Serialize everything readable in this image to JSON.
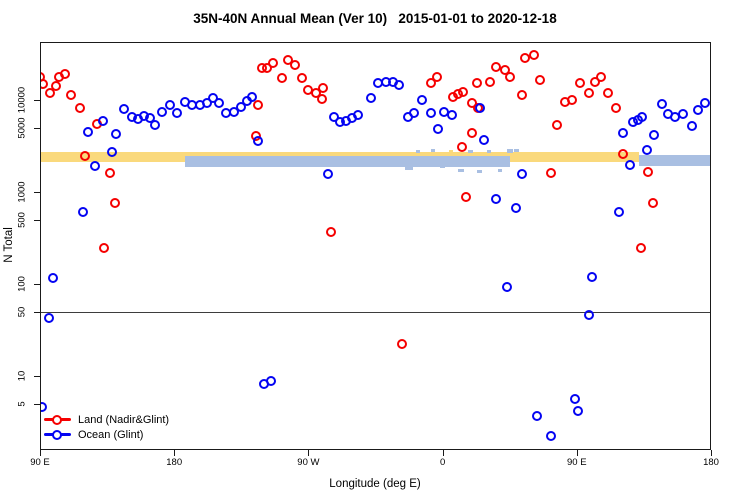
{
  "chart_data": {
    "type": "scatter",
    "title": "35N-40N Annual Mean (Ver 10)   2015-01-01 to 2020-12-18",
    "xlabel": "Longitude (deg E)",
    "ylabel": "N Total",
    "colors": {
      "land": "#f50000",
      "ocean": "#0404f2",
      "band_land": "#fad97c",
      "band_ocean": "#a9bfe2",
      "refline": "#3d3d3d"
    },
    "x_axis": {
      "note": "longitude axis starting at 90E wrapping eastward, deg = offset from 90E",
      "span_deg": 450,
      "ticks": [
        {
          "label": "90 E",
          "deg": 0
        },
        {
          "label": "180",
          "deg": 90
        },
        {
          "label": "90 W",
          "deg": 180
        },
        {
          "label": "0",
          "deg": 270
        },
        {
          "label": "90 E",
          "deg": 360
        },
        {
          "label": "180",
          "deg": 450
        }
      ]
    },
    "y_axis": {
      "scale": "log10",
      "ticks": [
        {
          "label": "5",
          "value": 5
        },
        {
          "label": "10",
          "value": 10
        },
        {
          "label": "50",
          "value": 50
        },
        {
          "label": "100",
          "value": 100
        },
        {
          "label": "500",
          "value": 500
        },
        {
          "label": "1000",
          "value": 1000
        },
        {
          "label": "5000",
          "value": 5000
        },
        {
          "label": "10000",
          "value": 10000
        }
      ],
      "range": [
        1.8,
        45000
      ]
    },
    "reference_line": {
      "n": 50
    },
    "bands": [
      {
        "series": "land",
        "color_key": "band_land",
        "deg_from": 0,
        "deg_to": 402,
        "n_low": 2100,
        "n_high": 2750
      },
      {
        "series": "ocean",
        "color_key": "band_ocean",
        "deg_from": 97,
        "deg_to": 315,
        "n_low": 1850,
        "n_high": 2460
      },
      {
        "series": "ocean",
        "color_key": "band_ocean",
        "deg_from": 402,
        "deg_to": 450,
        "n_low": 1900,
        "n_high": 2520
      }
    ],
    "band_speckles": [
      {
        "deg": 245,
        "n": 1850,
        "w": 8,
        "h": 3,
        "color_key": "band_ocean"
      },
      {
        "deg": 252,
        "n": 2880,
        "w": 4,
        "h": 3,
        "color_key": "band_ocean"
      },
      {
        "deg": 262,
        "n": 2900,
        "w": 4,
        "h": 3,
        "color_key": "band_ocean"
      },
      {
        "deg": 268,
        "n": 1950,
        "w": 5,
        "h": 3,
        "color_key": "band_ocean"
      },
      {
        "deg": 274,
        "n": 2850,
        "w": 4,
        "h": 3,
        "color_key": "band_land"
      },
      {
        "deg": 280,
        "n": 1800,
        "w": 6,
        "h": 3,
        "color_key": "band_ocean"
      },
      {
        "deg": 287,
        "n": 2880,
        "w": 5,
        "h": 3,
        "color_key": "band_ocean"
      },
      {
        "deg": 293,
        "n": 1750,
        "w": 5,
        "h": 3,
        "color_key": "band_ocean"
      },
      {
        "deg": 300,
        "n": 2850,
        "w": 4,
        "h": 3,
        "color_key": "band_ocean"
      },
      {
        "deg": 307,
        "n": 1800,
        "w": 4,
        "h": 3,
        "color_key": "band_ocean"
      },
      {
        "deg": 313,
        "n": 2950,
        "w": 6,
        "h": 4,
        "color_key": "band_ocean"
      },
      {
        "deg": 318,
        "n": 2900,
        "w": 5,
        "h": 3,
        "color_key": "band_ocean"
      }
    ],
    "series": [
      {
        "name": "Land (Nadir&Glint)",
        "color_key": "land",
        "points": [
          [
            0,
            17800
          ],
          [
            2,
            14900
          ],
          [
            7,
            11900
          ],
          [
            11,
            14200
          ],
          [
            13,
            17800
          ],
          [
            17,
            19200
          ],
          [
            21,
            11300
          ],
          [
            27,
            8200
          ],
          [
            30,
            2460
          ],
          [
            38,
            5500
          ],
          [
            47,
            1610
          ],
          [
            50,
            760
          ],
          [
            43,
            245
          ],
          [
            145,
            4060
          ],
          [
            146,
            8800
          ],
          [
            149,
            22300
          ],
          [
            152,
            22300
          ],
          [
            156,
            25200
          ],
          [
            162,
            17300
          ],
          [
            166,
            27200
          ],
          [
            171,
            24000
          ],
          [
            176,
            17300
          ],
          [
            180,
            12900
          ],
          [
            185,
            11900
          ],
          [
            189,
            10300
          ],
          [
            190,
            13500
          ],
          [
            195,
            367
          ],
          [
            243,
            22
          ],
          [
            262,
            15300
          ],
          [
            266,
            17800
          ],
          [
            277,
            10800
          ],
          [
            280,
            11600
          ],
          [
            284,
            12200
          ],
          [
            283,
            3100
          ],
          [
            286,
            880
          ],
          [
            290,
            9300
          ],
          [
            290,
            4400
          ],
          [
            294,
            8200
          ],
          [
            293,
            15300
          ],
          [
            302,
            15700
          ],
          [
            306,
            22900
          ],
          [
            312,
            21200
          ],
          [
            315,
            17800
          ],
          [
            323,
            11300
          ],
          [
            325,
            28600
          ],
          [
            331,
            30800
          ],
          [
            335,
            16500
          ],
          [
            343,
            1610
          ],
          [
            347,
            5340
          ],
          [
            352,
            9500
          ],
          [
            357,
            10000
          ],
          [
            362,
            15300
          ],
          [
            368,
            11900
          ],
          [
            372,
            15700
          ],
          [
            376,
            17800
          ],
          [
            381,
            11900
          ],
          [
            386,
            8200
          ],
          [
            391,
            2560
          ],
          [
            403,
            245
          ],
          [
            408,
            1650
          ],
          [
            411,
            760
          ]
        ]
      },
      {
        "name": "Ocean (Glint)",
        "color_key": "ocean",
        "points": [
          [
            1,
            4.6
          ],
          [
            6,
            43
          ],
          [
            9,
            116
          ],
          [
            29,
            610
          ],
          [
            32,
            4490
          ],
          [
            37,
            1920
          ],
          [
            42,
            5900
          ],
          [
            48,
            2720
          ],
          [
            51,
            4270
          ],
          [
            56,
            8000
          ],
          [
            62,
            6530
          ],
          [
            66,
            6210
          ],
          [
            70,
            6700
          ],
          [
            74,
            6360
          ],
          [
            77,
            5340
          ],
          [
            82,
            7400
          ],
          [
            87,
            8830
          ],
          [
            92,
            7230
          ],
          [
            97,
            9510
          ],
          [
            102,
            8830
          ],
          [
            107,
            8830
          ],
          [
            112,
            9330
          ],
          [
            116,
            10500
          ],
          [
            120,
            9330
          ],
          [
            125,
            7230
          ],
          [
            130,
            7400
          ],
          [
            135,
            8400
          ],
          [
            139,
            9770
          ],
          [
            142,
            10800
          ],
          [
            146,
            3580
          ],
          [
            150,
            8.2
          ],
          [
            155,
            8.8
          ],
          [
            193,
            1570
          ],
          [
            197,
            6530
          ],
          [
            201,
            5770
          ],
          [
            205,
            5900
          ],
          [
            209,
            6360
          ],
          [
            213,
            6870
          ],
          [
            222,
            10500
          ],
          [
            227,
            15300
          ],
          [
            232,
            15700
          ],
          [
            237,
            15700
          ],
          [
            241,
            14500
          ],
          [
            247,
            6530
          ],
          [
            251,
            7230
          ],
          [
            256,
            10000
          ],
          [
            262,
            7230
          ],
          [
            267,
            4840
          ],
          [
            271,
            7400
          ],
          [
            276,
            6870
          ],
          [
            295,
            8200
          ],
          [
            298,
            3670
          ],
          [
            306,
            840
          ],
          [
            313,
            93
          ],
          [
            319,
            670
          ],
          [
            323,
            1570
          ],
          [
            333,
            3.7
          ],
          [
            343,
            2.2
          ],
          [
            359,
            5.6
          ],
          [
            361,
            4.2
          ],
          [
            368,
            46
          ],
          [
            370,
            119
          ],
          [
            388,
            607
          ],
          [
            391,
            4380
          ],
          [
            396,
            1950
          ],
          [
            398,
            5770
          ],
          [
            401,
            6060
          ],
          [
            404,
            6530
          ],
          [
            407,
            2860
          ],
          [
            412,
            4160
          ],
          [
            417,
            9000
          ],
          [
            421,
            7100
          ],
          [
            426,
            6600
          ],
          [
            431,
            7100
          ],
          [
            437,
            5200
          ],
          [
            441,
            7800
          ],
          [
            446,
            9200
          ]
        ]
      }
    ],
    "legend": {
      "items": [
        {
          "label": "Land (Nadir&Glint)",
          "color_key": "land"
        },
        {
          "label": "Ocean (Glint)",
          "color_key": "ocean"
        }
      ]
    }
  }
}
